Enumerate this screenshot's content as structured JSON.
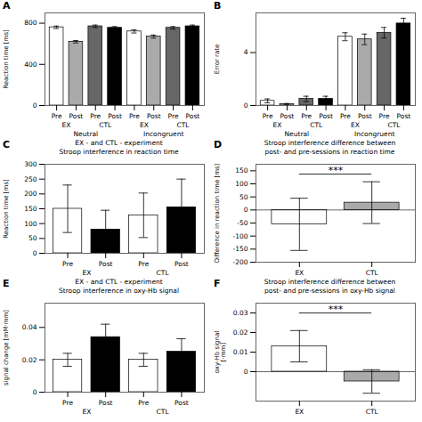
{
  "chart_data": [
    {
      "type": "bar",
      "panel": "A",
      "ylabel": "Reaction time [ms]",
      "categories": [
        "Pre",
        "Post",
        "Pre",
        "Post",
        "Pre",
        "Post",
        "Pre",
        "Post"
      ],
      "subgroup_labels": [
        "EX",
        "CTL",
        "EX",
        "CTL"
      ],
      "group_labels": [
        "Neutral",
        "Incongruent"
      ],
      "values": [
        760,
        620,
        770,
        755,
        720,
        670,
        755,
        770
      ],
      "errors": [
        12,
        12,
        12,
        12,
        15,
        15,
        12,
        12
      ],
      "colors": [
        "#ffffff",
        "#aaaaaa",
        "#666666",
        "#000000",
        "#ffffff",
        "#aaaaaa",
        "#666666",
        "#000000"
      ],
      "ylim": [
        0,
        900
      ],
      "yticks": [
        0,
        400,
        800
      ]
    },
    {
      "type": "bar",
      "panel": "B",
      "ylabel": "Error rate",
      "categories": [
        "Pre",
        "Post",
        "Pre",
        "Post",
        "Pre",
        "Post",
        "Pre",
        "Post"
      ],
      "subgroup_labels": [
        "EX",
        "CTL",
        "EX",
        "CTL"
      ],
      "group_labels": [
        "Neutral",
        "Incongruent"
      ],
      "values": [
        0.35,
        0.1,
        0.5,
        0.5,
        5.2,
        5.0,
        5.5,
        6.2
      ],
      "errors": [
        0.15,
        0.05,
        0.2,
        0.2,
        0.3,
        0.4,
        0.4,
        0.4
      ],
      "colors": [
        "#ffffff",
        "#aaaaaa",
        "#666666",
        "#000000",
        "#ffffff",
        "#aaaaaa",
        "#666666",
        "#000000"
      ],
      "ylim": [
        0,
        7
      ],
      "yticks": [
        0,
        4
      ]
    },
    {
      "type": "bar",
      "panel": "C",
      "title": "EX - and CTL - experiment\nStroop interference in reaction time",
      "ylabel": "Reaction time [ms]",
      "categories": [
        "Pre",
        "Post",
        "Pre",
        "Post"
      ],
      "subgroup_labels": [
        "EX",
        "CTL"
      ],
      "values": [
        150,
        80,
        128,
        155
      ],
      "errors": [
        80,
        65,
        75,
        95
      ],
      "colors": [
        "#ffffff",
        "#000000",
        "#ffffff",
        "#000000"
      ],
      "ylim": [
        0,
        300
      ],
      "yticks": [
        0,
        50,
        100,
        150,
        200,
        250,
        300
      ]
    },
    {
      "type": "bar",
      "panel": "D",
      "title": "Stroop interference difference between\npost- and pre-sessions in reaction time",
      "ylabel": "Difference in reaction time [ms]",
      "categories": [
        "EX",
        "CTL"
      ],
      "values": [
        -55,
        28
      ],
      "errors": [
        100,
        80
      ],
      "colors": [
        "#ffffff",
        "#aaaaaa"
      ],
      "ylim": [
        -200,
        175
      ],
      "yticks": [
        -200,
        -150,
        -100,
        -50,
        0,
        50,
        100,
        150
      ],
      "significance": "***"
    },
    {
      "type": "bar",
      "panel": "E",
      "title": "EX - and CTL - experiment\nStroop interference in oxy-Hb signal",
      "ylabel": "signal change [mM·mm]",
      "categories": [
        "Pre",
        "Post",
        "Pre",
        "Post"
      ],
      "subgroup_labels": [
        "EX",
        "CTL"
      ],
      "values": [
        0.02,
        0.034,
        0.02,
        0.025
      ],
      "errors": [
        0.004,
        0.008,
        0.004,
        0.008
      ],
      "colors": [
        "#ffffff",
        "#000000",
        "#ffffff",
        "#000000"
      ],
      "ylim": [
        0,
        0.055
      ],
      "yticks": [
        0,
        0.02,
        0.04
      ]
    },
    {
      "type": "bar",
      "panel": "F",
      "title": "Stroop interference difference between\npost- and pre-sessions in oxy-Hb signal",
      "ylabel": "oxy-Hb signal\n[·mm]",
      "categories": [
        "EX",
        "CTL"
      ],
      "values": [
        0.013,
        -0.005
      ],
      "errors": [
        0.008,
        0.006
      ],
      "colors": [
        "#ffffff",
        "#aaaaaa"
      ],
      "ylim": [
        -0.015,
        0.035
      ],
      "yticks": [
        0,
        0.01,
        0.02,
        0.03
      ],
      "significance": "***"
    }
  ]
}
